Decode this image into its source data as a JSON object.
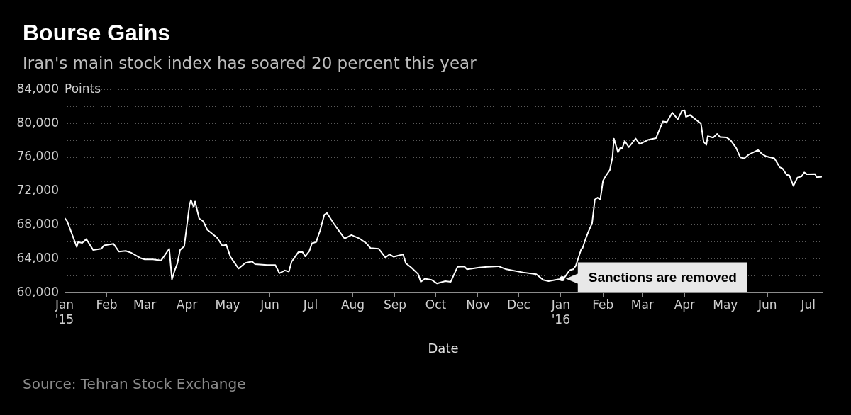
{
  "chart_data": {
    "type": "line",
    "title": "Bourse Gains",
    "subtitle": "Iran's main stock index has soared 20 percent this year",
    "xlabel": "Date",
    "ylabel": "Points",
    "x": [
      "2015-01-01",
      "2015-01-03",
      "2015-01-10",
      "2015-01-11",
      "2015-01-14",
      "2015-01-17",
      "2015-01-22",
      "2015-01-28",
      "2015-01-30",
      "2015-02-06",
      "2015-02-10",
      "2015-02-15",
      "2015-02-19",
      "2015-02-26",
      "2015-03-01",
      "2015-03-07",
      "2015-03-13",
      "2015-03-19",
      "2015-03-21",
      "2015-03-23",
      "2015-03-25",
      "2015-03-27",
      "2015-03-30",
      "2015-04-03",
      "2015-04-04",
      "2015-04-06",
      "2015-04-07",
      "2015-04-10",
      "2015-04-13",
      "2015-04-16",
      "2015-04-23",
      "2015-04-27",
      "2015-04-30",
      "2015-05-03",
      "2015-05-09",
      "2015-05-14",
      "2015-05-19",
      "2015-05-21",
      "2015-05-30",
      "2015-06-05",
      "2015-06-08",
      "2015-06-12",
      "2015-06-15",
      "2015-06-17",
      "2015-06-22",
      "2015-06-25",
      "2015-06-27",
      "2015-06-30",
      "2015-07-02",
      "2015-07-05",
      "2015-07-08",
      "2015-07-11",
      "2015-07-13",
      "2015-07-18",
      "2015-07-23",
      "2015-07-26",
      "2015-07-31",
      "2015-08-06",
      "2015-08-11",
      "2015-08-14",
      "2015-08-20",
      "2015-08-25",
      "2015-08-28",
      "2015-08-31",
      "2015-09-07",
      "2015-09-09",
      "2015-09-13",
      "2015-09-18",
      "2015-09-20",
      "2015-09-23",
      "2015-09-28",
      "2015-10-02",
      "2015-10-08",
      "2015-10-12",
      "2015-10-17",
      "2015-10-22",
      "2015-10-24",
      "2015-11-02",
      "2015-11-08",
      "2015-11-16",
      "2015-11-22",
      "2015-12-04",
      "2015-12-14",
      "2015-12-19",
      "2015-12-23",
      "2015-12-30",
      "2016-01-03",
      "2016-01-07",
      "2016-01-08",
      "2016-01-10",
      "2016-01-12",
      "2016-01-16",
      "2016-01-17",
      "2016-01-19",
      "2016-01-21",
      "2016-01-24",
      "2016-01-26",
      "2016-01-28",
      "2016-01-30",
      "2016-02-01",
      "2016-02-03",
      "2016-02-06",
      "2016-02-08",
      "2016-02-09",
      "2016-02-12",
      "2016-02-14",
      "2016-02-15",
      "2016-02-17",
      "2016-02-20",
      "2016-02-25",
      "2016-02-28",
      "2016-03-05",
      "2016-03-11",
      "2016-03-16",
      "2016-03-19",
      "2016-03-23",
      "2016-03-27",
      "2016-03-30",
      "2016-04-01",
      "2016-04-02",
      "2016-04-05",
      "2016-04-11",
      "2016-04-13",
      "2016-04-15",
      "2016-04-17",
      "2016-04-18",
      "2016-04-22",
      "2016-04-25",
      "2016-04-27",
      "2016-05-02",
      "2016-05-05",
      "2016-05-09",
      "2016-05-12",
      "2016-05-15",
      "2016-05-18",
      "2016-05-25",
      "2016-05-28",
      "2016-05-31",
      "2016-06-06",
      "2016-06-10",
      "2016-06-12",
      "2016-06-15",
      "2016-06-17",
      "2016-06-20",
      "2016-06-23",
      "2016-06-26",
      "2016-06-28",
      "2016-06-30",
      "2016-07-06",
      "2016-07-07",
      "2016-07-11"
    ],
    "series": [
      {
        "color": "#ffffff",
        "values": [
          68840,
          68440,
          65430,
          66000,
          65900,
          66350,
          65070,
          65200,
          65600,
          65800,
          64870,
          64960,
          64740,
          64100,
          63960,
          63960,
          63820,
          65210,
          61590,
          62650,
          63490,
          65070,
          65490,
          70450,
          70950,
          70090,
          70780,
          68780,
          68440,
          67440,
          66550,
          65580,
          65660,
          64260,
          62870,
          63540,
          63700,
          63400,
          63290,
          63290,
          62320,
          62650,
          62510,
          63680,
          64820,
          64820,
          64320,
          64930,
          65850,
          65990,
          67380,
          69200,
          69420,
          68170,
          67050,
          66410,
          66830,
          66410,
          65850,
          65290,
          65210,
          64180,
          64540,
          64260,
          64540,
          63490,
          62990,
          62230,
          61310,
          61670,
          61530,
          61110,
          61390,
          61310,
          63070,
          63120,
          62780,
          62990,
          63070,
          63150,
          62780,
          62420,
          62200,
          61530,
          61390,
          61590,
          61670,
          62570,
          62700,
          62780,
          63200,
          65160,
          65290,
          66270,
          67110,
          68220,
          71010,
          71230,
          71010,
          73230,
          73790,
          74490,
          76020,
          78200,
          76580,
          77190,
          77000,
          77920,
          77190,
          78200,
          77560,
          78040,
          78260,
          80210,
          80150,
          81260,
          80480,
          81460,
          81540,
          80760,
          80980,
          80210,
          79980,
          77830,
          77470,
          78480,
          78310,
          78750,
          78390,
          78330,
          77970,
          77080,
          75970,
          75880,
          76300,
          76850,
          76380,
          76100,
          75880,
          74820,
          74680,
          73930,
          73880,
          72620,
          73600,
          73740,
          74210,
          73990,
          74020,
          73650,
          73710
        ]
      }
    ],
    "xlim": [
      "2015-01-01",
      "2016-07-11"
    ],
    "xticks": [
      {
        "value": "2015-01-01",
        "label": "Jan\n'15"
      },
      {
        "value": "2015-02-01",
        "label": "Feb"
      },
      {
        "value": "2015-03-01",
        "label": "Mar"
      },
      {
        "value": "2015-04-01",
        "label": "Apr"
      },
      {
        "value": "2015-05-01",
        "label": "May"
      },
      {
        "value": "2015-06-01",
        "label": "Jun"
      },
      {
        "value": "2015-07-01",
        "label": "Jul"
      },
      {
        "value": "2015-08-01",
        "label": "Aug"
      },
      {
        "value": "2015-09-01",
        "label": "Sep"
      },
      {
        "value": "2015-10-01",
        "label": "Oct"
      },
      {
        "value": "2015-11-01",
        "label": "Nov"
      },
      {
        "value": "2015-12-01",
        "label": "Dec"
      },
      {
        "value": "2016-01-01",
        "label": "Jan\n'16"
      },
      {
        "value": "2016-02-01",
        "label": "Feb"
      },
      {
        "value": "2016-03-01",
        "label": "Mar"
      },
      {
        "value": "2016-04-01",
        "label": "Apr"
      },
      {
        "value": "2016-05-01",
        "label": "May"
      },
      {
        "value": "2016-06-01",
        "label": "Jun"
      },
      {
        "value": "2016-07-01",
        "label": "Jul"
      }
    ],
    "ylim": [
      60000,
      84000
    ],
    "yticks": [
      {
        "value": 60000,
        "label": "60,000"
      },
      {
        "value": 62000,
        "label": null
      },
      {
        "value": 64000,
        "label": "64,000"
      },
      {
        "value": 66000,
        "label": null
      },
      {
        "value": 68000,
        "label": "68,000"
      },
      {
        "value": 70000,
        "label": null
      },
      {
        "value": 72000,
        "label": "72,000"
      },
      {
        "value": 74000,
        "label": null
      },
      {
        "value": 76000,
        "label": "76,000"
      },
      {
        "value": 78000,
        "label": null
      },
      {
        "value": 80000,
        "label": "80,000"
      },
      {
        "value": 82000,
        "label": null
      },
      {
        "value": 84000,
        "label": "84,000"
      }
    ],
    "grid": "y",
    "legend": false,
    "annotations": [
      {
        "text": "Sanctions are removed",
        "x": "2016-01-02",
        "y": 61670
      },
      "Source: Tehran Stock Exchange"
    ]
  }
}
